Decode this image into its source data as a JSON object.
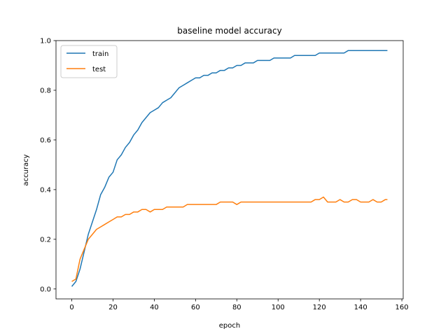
{
  "chart_data": {
    "type": "line",
    "title": "baseline model accuracy",
    "xlabel": "epoch",
    "ylabel": "accuracy",
    "xlim": [
      -7.65,
      160.65
    ],
    "ylim": [
      -0.04,
      1.0
    ],
    "xticks": [
      0,
      20,
      40,
      60,
      80,
      100,
      120,
      140,
      160
    ],
    "yticks": [
      0.0,
      0.2,
      0.4,
      0.6,
      0.8,
      1.0
    ],
    "xtick_labels": [
      "0",
      "20",
      "40",
      "60",
      "80",
      "100",
      "120",
      "140",
      "160"
    ],
    "ytick_labels": [
      "0.0",
      "0.2",
      "0.4",
      "0.6",
      "0.8",
      "1.0"
    ],
    "legend_position": "top-left",
    "grid": false,
    "series": [
      {
        "name": "train",
        "color": "#1f77b4",
        "points": [
          [
            0,
            0.01
          ],
          [
            2,
            0.03
          ],
          [
            4,
            0.08
          ],
          [
            6,
            0.15
          ],
          [
            8,
            0.22
          ],
          [
            10,
            0.27
          ],
          [
            12,
            0.32
          ],
          [
            14,
            0.38
          ],
          [
            16,
            0.41
          ],
          [
            18,
            0.45
          ],
          [
            20,
            0.47
          ],
          [
            22,
            0.52
          ],
          [
            24,
            0.54
          ],
          [
            26,
            0.57
          ],
          [
            28,
            0.59
          ],
          [
            30,
            0.62
          ],
          [
            32,
            0.64
          ],
          [
            34,
            0.67
          ],
          [
            36,
            0.69
          ],
          [
            38,
            0.71
          ],
          [
            40,
            0.72
          ],
          [
            42,
            0.73
          ],
          [
            44,
            0.75
          ],
          [
            46,
            0.76
          ],
          [
            48,
            0.77
          ],
          [
            50,
            0.79
          ],
          [
            52,
            0.81
          ],
          [
            54,
            0.82
          ],
          [
            56,
            0.83
          ],
          [
            58,
            0.84
          ],
          [
            60,
            0.85
          ],
          [
            62,
            0.85
          ],
          [
            64,
            0.86
          ],
          [
            66,
            0.86
          ],
          [
            68,
            0.87
          ],
          [
            70,
            0.87
          ],
          [
            72,
            0.88
          ],
          [
            74,
            0.88
          ],
          [
            76,
            0.89
          ],
          [
            78,
            0.89
          ],
          [
            80,
            0.9
          ],
          [
            82,
            0.9
          ],
          [
            84,
            0.91
          ],
          [
            86,
            0.91
          ],
          [
            88,
            0.91
          ],
          [
            90,
            0.92
          ],
          [
            92,
            0.92
          ],
          [
            94,
            0.92
          ],
          [
            96,
            0.92
          ],
          [
            98,
            0.93
          ],
          [
            100,
            0.93
          ],
          [
            102,
            0.93
          ],
          [
            104,
            0.93
          ],
          [
            106,
            0.93
          ],
          [
            108,
            0.94
          ],
          [
            110,
            0.94
          ],
          [
            112,
            0.94
          ],
          [
            114,
            0.94
          ],
          [
            116,
            0.94
          ],
          [
            118,
            0.94
          ],
          [
            120,
            0.95
          ],
          [
            122,
            0.95
          ],
          [
            124,
            0.95
          ],
          [
            126,
            0.95
          ],
          [
            128,
            0.95
          ],
          [
            130,
            0.95
          ],
          [
            132,
            0.95
          ],
          [
            134,
            0.96
          ],
          [
            136,
            0.96
          ],
          [
            138,
            0.96
          ],
          [
            140,
            0.96
          ],
          [
            142,
            0.96
          ],
          [
            144,
            0.96
          ],
          [
            146,
            0.96
          ],
          [
            148,
            0.96
          ],
          [
            150,
            0.96
          ],
          [
            152,
            0.96
          ],
          [
            153,
            0.96
          ]
        ]
      },
      {
        "name": "test",
        "color": "#ff7f0e",
        "points": [
          [
            0,
            0.03
          ],
          [
            2,
            0.04
          ],
          [
            4,
            0.12
          ],
          [
            6,
            0.16
          ],
          [
            8,
            0.2
          ],
          [
            10,
            0.22
          ],
          [
            12,
            0.24
          ],
          [
            14,
            0.25
          ],
          [
            16,
            0.26
          ],
          [
            18,
            0.27
          ],
          [
            20,
            0.28
          ],
          [
            22,
            0.29
          ],
          [
            24,
            0.29
          ],
          [
            26,
            0.3
          ],
          [
            28,
            0.3
          ],
          [
            30,
            0.31
          ],
          [
            32,
            0.31
          ],
          [
            34,
            0.32
          ],
          [
            36,
            0.32
          ],
          [
            38,
            0.31
          ],
          [
            40,
            0.32
          ],
          [
            42,
            0.32
          ],
          [
            44,
            0.32
          ],
          [
            46,
            0.33
          ],
          [
            48,
            0.33
          ],
          [
            50,
            0.33
          ],
          [
            52,
            0.33
          ],
          [
            54,
            0.33
          ],
          [
            56,
            0.34
          ],
          [
            58,
            0.34
          ],
          [
            60,
            0.34
          ],
          [
            62,
            0.34
          ],
          [
            64,
            0.34
          ],
          [
            66,
            0.34
          ],
          [
            68,
            0.34
          ],
          [
            70,
            0.34
          ],
          [
            72,
            0.35
          ],
          [
            74,
            0.35
          ],
          [
            76,
            0.35
          ],
          [
            78,
            0.35
          ],
          [
            80,
            0.34
          ],
          [
            82,
            0.35
          ],
          [
            84,
            0.35
          ],
          [
            86,
            0.35
          ],
          [
            88,
            0.35
          ],
          [
            90,
            0.35
          ],
          [
            92,
            0.35
          ],
          [
            94,
            0.35
          ],
          [
            96,
            0.35
          ],
          [
            98,
            0.35
          ],
          [
            100,
            0.35
          ],
          [
            102,
            0.35
          ],
          [
            104,
            0.35
          ],
          [
            106,
            0.35
          ],
          [
            108,
            0.35
          ],
          [
            110,
            0.35
          ],
          [
            112,
            0.35
          ],
          [
            114,
            0.35
          ],
          [
            116,
            0.35
          ],
          [
            118,
            0.36
          ],
          [
            120,
            0.36
          ],
          [
            122,
            0.37
          ],
          [
            124,
            0.35
          ],
          [
            126,
            0.35
          ],
          [
            128,
            0.35
          ],
          [
            130,
            0.36
          ],
          [
            132,
            0.35
          ],
          [
            134,
            0.35
          ],
          [
            136,
            0.36
          ],
          [
            138,
            0.36
          ],
          [
            140,
            0.35
          ],
          [
            142,
            0.35
          ],
          [
            144,
            0.35
          ],
          [
            146,
            0.36
          ],
          [
            148,
            0.35
          ],
          [
            150,
            0.35
          ],
          [
            152,
            0.36
          ],
          [
            153,
            0.36
          ]
        ]
      }
    ]
  }
}
